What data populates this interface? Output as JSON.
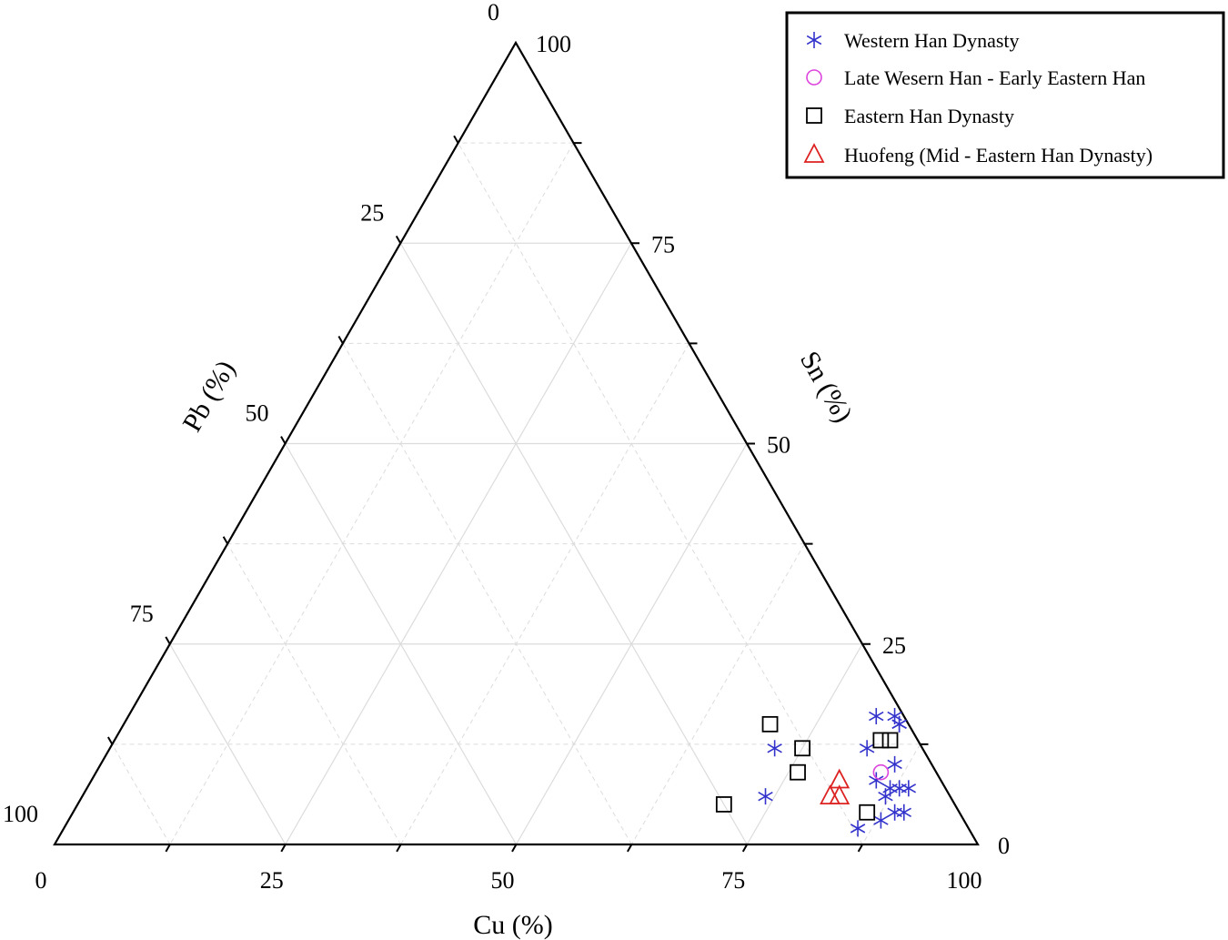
{
  "chart_data": {
    "type": "scatter",
    "subtype": "ternary",
    "axes": {
      "bottom": {
        "label": "Cu (%)",
        "ticks": [
          "0",
          "25",
          "50",
          "75",
          "100"
        ]
      },
      "left": {
        "label": "Pb (%)",
        "ticks": [
          "0",
          "25",
          "50",
          "75",
          "100"
        ]
      },
      "right": {
        "label": "Sn (%)",
        "ticks": [
          "0",
          "25",
          "50",
          "75",
          "100"
        ]
      },
      "range": [
        0,
        100
      ]
    },
    "grid": true,
    "legend_position": "top-right",
    "series": [
      {
        "name": "Western Han Dynasty",
        "marker": "asterisk",
        "color": "#3333cc",
        "points": [
          {
            "cu": 84,
            "sn": 15,
            "pb": 1
          },
          {
            "cu": 81,
            "sn": 16,
            "pb": 3
          },
          {
            "cu": 83,
            "sn": 16,
            "pb": 1
          },
          {
            "cu": 84,
            "sn": 15,
            "pb": 1
          },
          {
            "cu": 82,
            "sn": 12,
            "pb": 6
          },
          {
            "cu": 72,
            "sn": 12,
            "pb": 16
          },
          {
            "cu": 86,
            "sn": 10,
            "pb": 4
          },
          {
            "cu": 85,
            "sn": 8,
            "pb": 7
          },
          {
            "cu": 87,
            "sn": 7,
            "pb": 6
          },
          {
            "cu": 88,
            "sn": 7,
            "pb": 5
          },
          {
            "cu": 89,
            "sn": 7,
            "pb": 4
          },
          {
            "cu": 87,
            "sn": 6,
            "pb": 7
          },
          {
            "cu": 89,
            "sn": 4,
            "pb": 7
          },
          {
            "cu": 88,
            "sn": 3,
            "pb": 9
          },
          {
            "cu": 74,
            "sn": 6,
            "pb": 20
          },
          {
            "cu": 90,
            "sn": 4,
            "pb": 6
          },
          {
            "cu": 86,
            "sn": 2,
            "pb": 12
          }
        ]
      },
      {
        "name": "Late Wesern Han - Early Eastern Han",
        "marker": "circle",
        "color": "#dd44dd",
        "points": [
          {
            "cu": 85,
            "sn": 9,
            "pb": 6
          }
        ]
      },
      {
        "name": "Eastern Han Dynasty",
        "marker": "square",
        "color": "#000000",
        "points": [
          {
            "cu": 70,
            "sn": 15,
            "pb": 15
          },
          {
            "cu": 75,
            "sn": 12,
            "pb": 13
          },
          {
            "cu": 76,
            "sn": 9,
            "pb": 15
          },
          {
            "cu": 70,
            "sn": 5,
            "pb": 25
          },
          {
            "cu": 83,
            "sn": 13,
            "pb": 4
          },
          {
            "cu": 84,
            "sn": 13,
            "pb": 3
          },
          {
            "cu": 86,
            "sn": 4,
            "pb": 10
          }
        ]
      },
      {
        "name": "Huofeng (Mid - Eastern Han Dynasty)",
        "marker": "triangle",
        "color": "#dd2222",
        "points": [
          {
            "cu": 81,
            "sn": 8,
            "pb": 11
          },
          {
            "cu": 81,
            "sn": 6,
            "pb": 13
          },
          {
            "cu": 82,
            "sn": 6,
            "pb": 12
          }
        ]
      }
    ]
  }
}
